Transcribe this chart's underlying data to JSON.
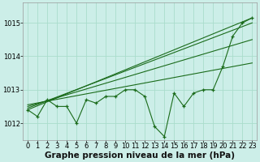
{
  "bg_color": "#cceee8",
  "grid_color": "#aaddcc",
  "line_color": "#1a6b1a",
  "title": "Graphe pression niveau de la mer (hPa)",
  "xlim": [
    -0.5,
    23.5
  ],
  "ylim": [
    1011.5,
    1015.6
  ],
  "yticks": [
    1012,
    1013,
    1014,
    1015
  ],
  "xticks": [
    0,
    1,
    2,
    3,
    4,
    5,
    6,
    7,
    8,
    9,
    10,
    11,
    12,
    13,
    14,
    15,
    16,
    17,
    18,
    19,
    20,
    21,
    22,
    23
  ],
  "jagged": [
    1012.4,
    1012.2,
    1012.7,
    1012.5,
    1012.5,
    1012.0,
    1012.7,
    1012.6,
    1012.8,
    1012.8,
    1013.0,
    1013.0,
    1012.8,
    1011.9,
    1011.6,
    1012.9,
    1012.5,
    1012.9,
    1013.0,
    1013.0,
    1013.7,
    1014.6,
    1015.0,
    1015.15
  ],
  "smooth_lines": [
    [
      [
        0,
        23
      ],
      [
        1012.4,
        1015.15
      ]
    ],
    [
      [
        0,
        23
      ],
      [
        1012.45,
        1015.0
      ]
    ],
    [
      [
        0,
        23
      ],
      [
        1012.5,
        1014.5
      ]
    ],
    [
      [
        0,
        23
      ],
      [
        1012.55,
        1013.8
      ]
    ]
  ],
  "title_fontsize": 7.5,
  "tick_fontsize": 6.0,
  "figwidth": 3.2,
  "figheight": 2.0,
  "dpi": 100
}
